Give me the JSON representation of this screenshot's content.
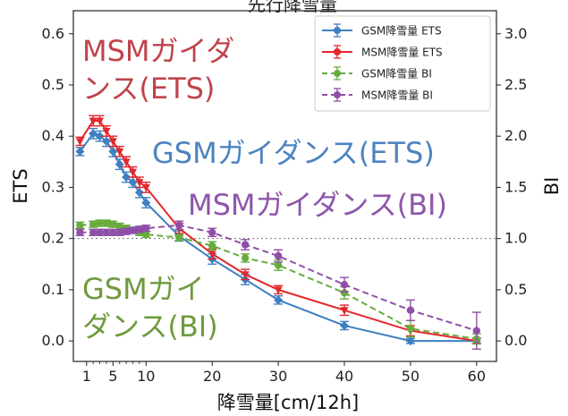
{
  "chart_data": {
    "type": "line",
    "title": "先行降雪量",
    "xlabel": "降雪量[cm/12h]",
    "ylabel_left": "ETS",
    "ylabel_right": "BI",
    "xlim": [
      -1,
      63
    ],
    "ylim_left": [
      -0.04,
      0.645
    ],
    "ylim_right": [
      -0.2,
      3.225
    ],
    "x_ticks": [
      {
        "value": 1,
        "label": "1"
      },
      {
        "value": 5,
        "label": "5"
      },
      {
        "value": 10,
        "label": "10"
      },
      {
        "value": 20,
        "label": "20"
      },
      {
        "value": 30,
        "label": "30"
      },
      {
        "value": 40,
        "label": "40"
      },
      {
        "value": 50,
        "label": "50"
      },
      {
        "value": 60,
        "label": "60"
      }
    ],
    "x_minor_ticks": [
      2,
      3,
      4,
      6,
      7,
      8,
      9
    ],
    "y_ticks_left": [
      {
        "value": 0.0,
        "label": "0.0"
      },
      {
        "value": 0.1,
        "label": "0.1"
      },
      {
        "value": 0.2,
        "label": "0.2"
      },
      {
        "value": 0.3,
        "label": "0.3"
      },
      {
        "value": 0.4,
        "label": "0.4"
      },
      {
        "value": 0.5,
        "label": "0.5"
      },
      {
        "value": 0.6,
        "label": "0.6"
      }
    ],
    "y_ticks_right": [
      {
        "value": 0.0,
        "label": "0.0"
      },
      {
        "value": 0.5,
        "label": "0.5"
      },
      {
        "value": 1.0,
        "label": "1.0"
      },
      {
        "value": 1.5,
        "label": "1.5"
      },
      {
        "value": 2.0,
        "label": "2.0"
      },
      {
        "value": 2.5,
        "label": "2.5"
      },
      {
        "value": 3.0,
        "label": "3.0"
      }
    ],
    "reference_line": {
      "axis": "right",
      "value": 1.0,
      "style": "dotted",
      "color": "#777777"
    },
    "legend_position": "top-right",
    "series": [
      {
        "name": "GSM降雪量 ETS",
        "axis": "left",
        "color": "#3d7fc1",
        "dash": "solid",
        "points": [
          {
            "x": 0,
            "y": 0.37,
            "err": 0.008
          },
          {
            "x": 2,
            "y": 0.405,
            "err": 0.01
          },
          {
            "x": 3,
            "y": 0.4,
            "err": 0.01
          },
          {
            "x": 4,
            "y": 0.39,
            "err": 0.01
          },
          {
            "x": 5,
            "y": 0.37,
            "err": 0.01
          },
          {
            "x": 6,
            "y": 0.345,
            "err": 0.01
          },
          {
            "x": 7,
            "y": 0.32,
            "err": 0.01
          },
          {
            "x": 8,
            "y": 0.31,
            "err": 0.01
          },
          {
            "x": 9,
            "y": 0.29,
            "err": 0.01
          },
          {
            "x": 10,
            "y": 0.27,
            "err": 0.01
          },
          {
            "x": 15,
            "y": 0.205,
            "err": 0.01
          },
          {
            "x": 20,
            "y": 0.16,
            "err": 0.01
          },
          {
            "x": 25,
            "y": 0.12,
            "err": 0.01
          },
          {
            "x": 30,
            "y": 0.08,
            "err": 0.008
          },
          {
            "x": 40,
            "y": 0.03,
            "err": 0.008
          },
          {
            "x": 50,
            "y": 0.0,
            "err": 0.005
          },
          {
            "x": 60,
            "y": 0.0,
            "err": 0.005
          }
        ]
      },
      {
        "name": "MSM降雪量 ETS",
        "axis": "left",
        "color": "#e3262b",
        "dash": "solid",
        "points": [
          {
            "x": 0,
            "y": 0.39,
            "err": 0.008
          },
          {
            "x": 2,
            "y": 0.43,
            "err": 0.01
          },
          {
            "x": 3,
            "y": 0.43,
            "err": 0.01
          },
          {
            "x": 4,
            "y": 0.41,
            "err": 0.01
          },
          {
            "x": 5,
            "y": 0.39,
            "err": 0.01
          },
          {
            "x": 6,
            "y": 0.37,
            "err": 0.01
          },
          {
            "x": 7,
            "y": 0.35,
            "err": 0.01
          },
          {
            "x": 8,
            "y": 0.33,
            "err": 0.01
          },
          {
            "x": 9,
            "y": 0.31,
            "err": 0.01
          },
          {
            "x": 10,
            "y": 0.3,
            "err": 0.01
          },
          {
            "x": 15,
            "y": 0.22,
            "err": 0.01
          },
          {
            "x": 20,
            "y": 0.17,
            "err": 0.01
          },
          {
            "x": 25,
            "y": 0.13,
            "err": 0.01
          },
          {
            "x": 30,
            "y": 0.1,
            "err": 0.008
          },
          {
            "x": 40,
            "y": 0.06,
            "err": 0.01
          },
          {
            "x": 50,
            "y": 0.02,
            "err": 0.01
          },
          {
            "x": 60,
            "y": 0.0,
            "err": 0.005
          }
        ]
      },
      {
        "name": "GSM降雪量 BI",
        "axis": "right",
        "color": "#67ac3d",
        "dash": "dashed",
        "points": [
          {
            "x": 0,
            "y": 1.13,
            "err": 0.03
          },
          {
            "x": 2,
            "y": 1.14,
            "err": 0.03
          },
          {
            "x": 3,
            "y": 1.15,
            "err": 0.03
          },
          {
            "x": 4,
            "y": 1.15,
            "err": 0.03
          },
          {
            "x": 5,
            "y": 1.14,
            "err": 0.03
          },
          {
            "x": 6,
            "y": 1.12,
            "err": 0.03
          },
          {
            "x": 7,
            "y": 1.1,
            "err": 0.03
          },
          {
            "x": 8,
            "y": 1.08,
            "err": 0.03
          },
          {
            "x": 9,
            "y": 1.06,
            "err": 0.03
          },
          {
            "x": 10,
            "y": 1.04,
            "err": 0.03
          },
          {
            "x": 15,
            "y": 1.01,
            "err": 0.03
          },
          {
            "x": 20,
            "y": 0.93,
            "err": 0.04
          },
          {
            "x": 25,
            "y": 0.81,
            "err": 0.04
          },
          {
            "x": 30,
            "y": 0.74,
            "err": 0.05
          },
          {
            "x": 40,
            "y": 0.47,
            "err": 0.06
          },
          {
            "x": 50,
            "y": 0.12,
            "err": 0.08
          },
          {
            "x": 60,
            "y": 0.02,
            "err": 0.05
          }
        ]
      },
      {
        "name": "MSM降雪量 BI",
        "axis": "right",
        "color": "#8f4fa8",
        "dash": "dashed",
        "points": [
          {
            "x": 0,
            "y": 1.06,
            "err": 0.03
          },
          {
            "x": 2,
            "y": 1.06,
            "err": 0.03
          },
          {
            "x": 3,
            "y": 1.06,
            "err": 0.03
          },
          {
            "x": 4,
            "y": 1.06,
            "err": 0.03
          },
          {
            "x": 5,
            "y": 1.06,
            "err": 0.03
          },
          {
            "x": 6,
            "y": 1.06,
            "err": 0.03
          },
          {
            "x": 7,
            "y": 1.07,
            "err": 0.03
          },
          {
            "x": 8,
            "y": 1.08,
            "err": 0.03
          },
          {
            "x": 9,
            "y": 1.09,
            "err": 0.03
          },
          {
            "x": 10,
            "y": 1.1,
            "err": 0.03
          },
          {
            "x": 15,
            "y": 1.13,
            "err": 0.04
          },
          {
            "x": 20,
            "y": 1.06,
            "err": 0.04
          },
          {
            "x": 25,
            "y": 0.94,
            "err": 0.05
          },
          {
            "x": 30,
            "y": 0.83,
            "err": 0.06
          },
          {
            "x": 40,
            "y": 0.55,
            "err": 0.07
          },
          {
            "x": 50,
            "y": 0.3,
            "err": 0.1
          },
          {
            "x": 60,
            "y": 0.1,
            "err": 0.18
          }
        ]
      }
    ],
    "annotations": [
      {
        "text_lines": [
          "MSMガイダ",
          "ンス(ETS)"
        ],
        "color": "#c0434b"
      },
      {
        "text_lines": [
          "GSMガイダンス(ETS)"
        ],
        "color": "#4d83bf"
      },
      {
        "text_lines": [
          "MSMガイダンス(BI)"
        ],
        "color": "#8e56ab"
      },
      {
        "text_lines": [
          "GSMガイ",
          "ダンス(BI)"
        ],
        "color": "#6f9a3e"
      }
    ]
  }
}
